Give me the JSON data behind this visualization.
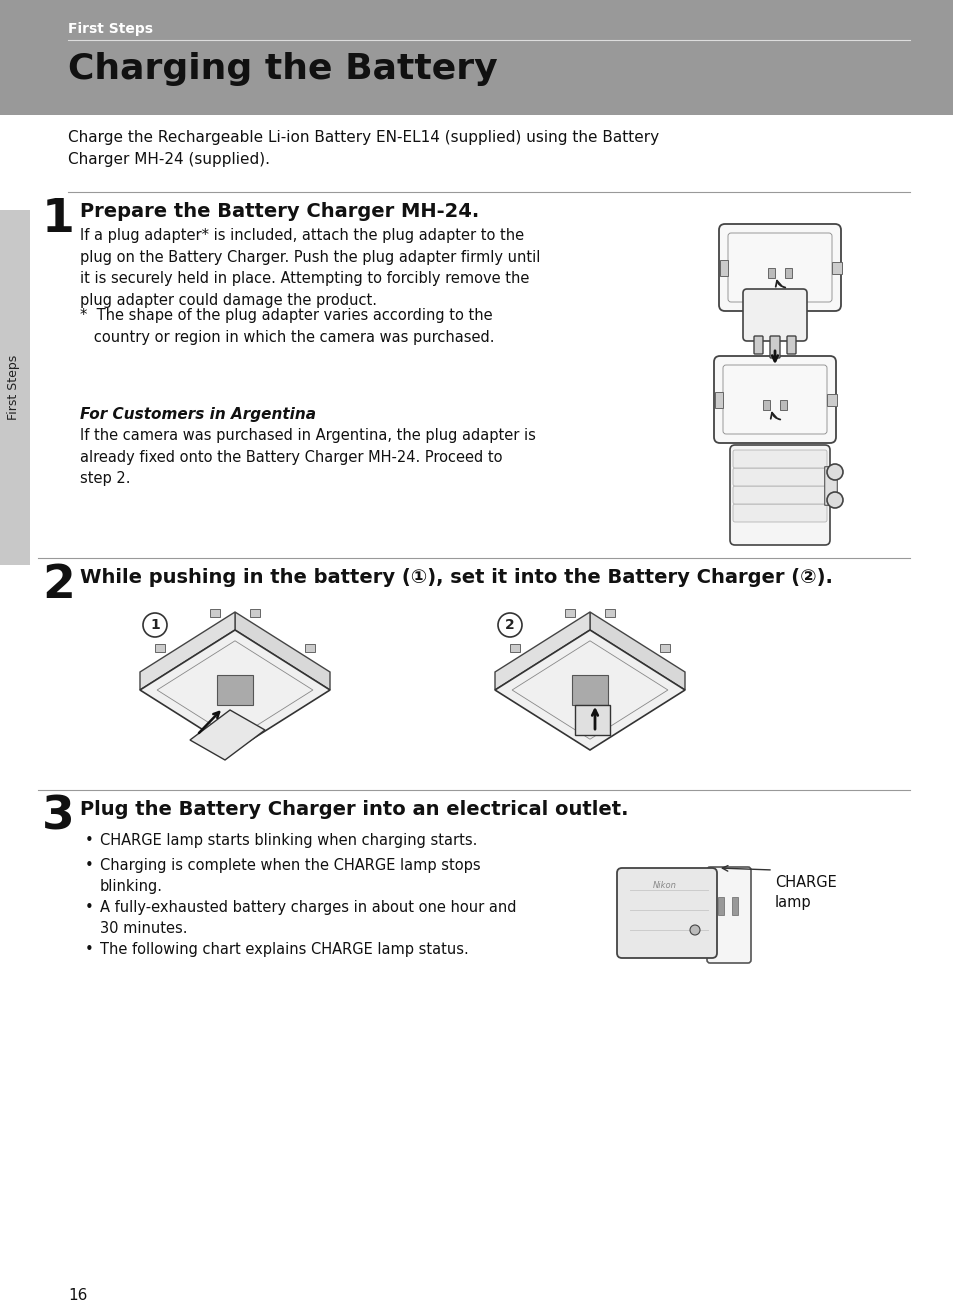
{
  "page_bg": "#ffffff",
  "header_bg": "#999999",
  "header_text": "First Steps",
  "header_text_color": "#ffffff",
  "title_text": "Charging the Battery",
  "title_color": "#111111",
  "sidebar_bg": "#c0c0c0",
  "sidebar_text": "First Steps",
  "intro_text": "Charge the Rechargeable Li-ion Battery EN-EL14 (supplied) using the Battery\nCharger MH-24 (supplied).",
  "step1_num": "1",
  "step1_heading": "Prepare the Battery Charger MH-24.",
  "step1_body": "If a plug adapter* is included, attach the plug adapter to the\nplug on the Battery Charger. Push the plug adapter firmly until\nit is securely held in place. Attempting to forcibly remove the\nplug adapter could damage the product.",
  "step1_note": "*  The shape of the plug adapter varies according to the\n   country or region in which the camera was purchased.",
  "argentina_heading": "For Customers in Argentina",
  "argentina_body": "If the camera was purchased in Argentina, the plug adapter is\nalready fixed onto the Battery Charger MH-24. Proceed to\nstep 2.",
  "step2_num": "2",
  "step2_heading": "While pushing in the battery (①), set it into the Battery Charger (②).",
  "step2_label1": "1",
  "step2_label2": "2",
  "step3_num": "3",
  "step3_heading": "Plug the Battery Charger into an electrical outlet.",
  "step3_bullets": [
    "CHARGE lamp starts blinking when charging starts.",
    "Charging is complete when the CHARGE lamp stops\nblinking.",
    "A fully-exhausted battery charges in about one hour and\n30 minutes.",
    "The following chart explains CHARGE lamp status."
  ],
  "step3_annotation": "CHARGE\nlamp",
  "page_num": "16",
  "divider_color": "#cccccc"
}
